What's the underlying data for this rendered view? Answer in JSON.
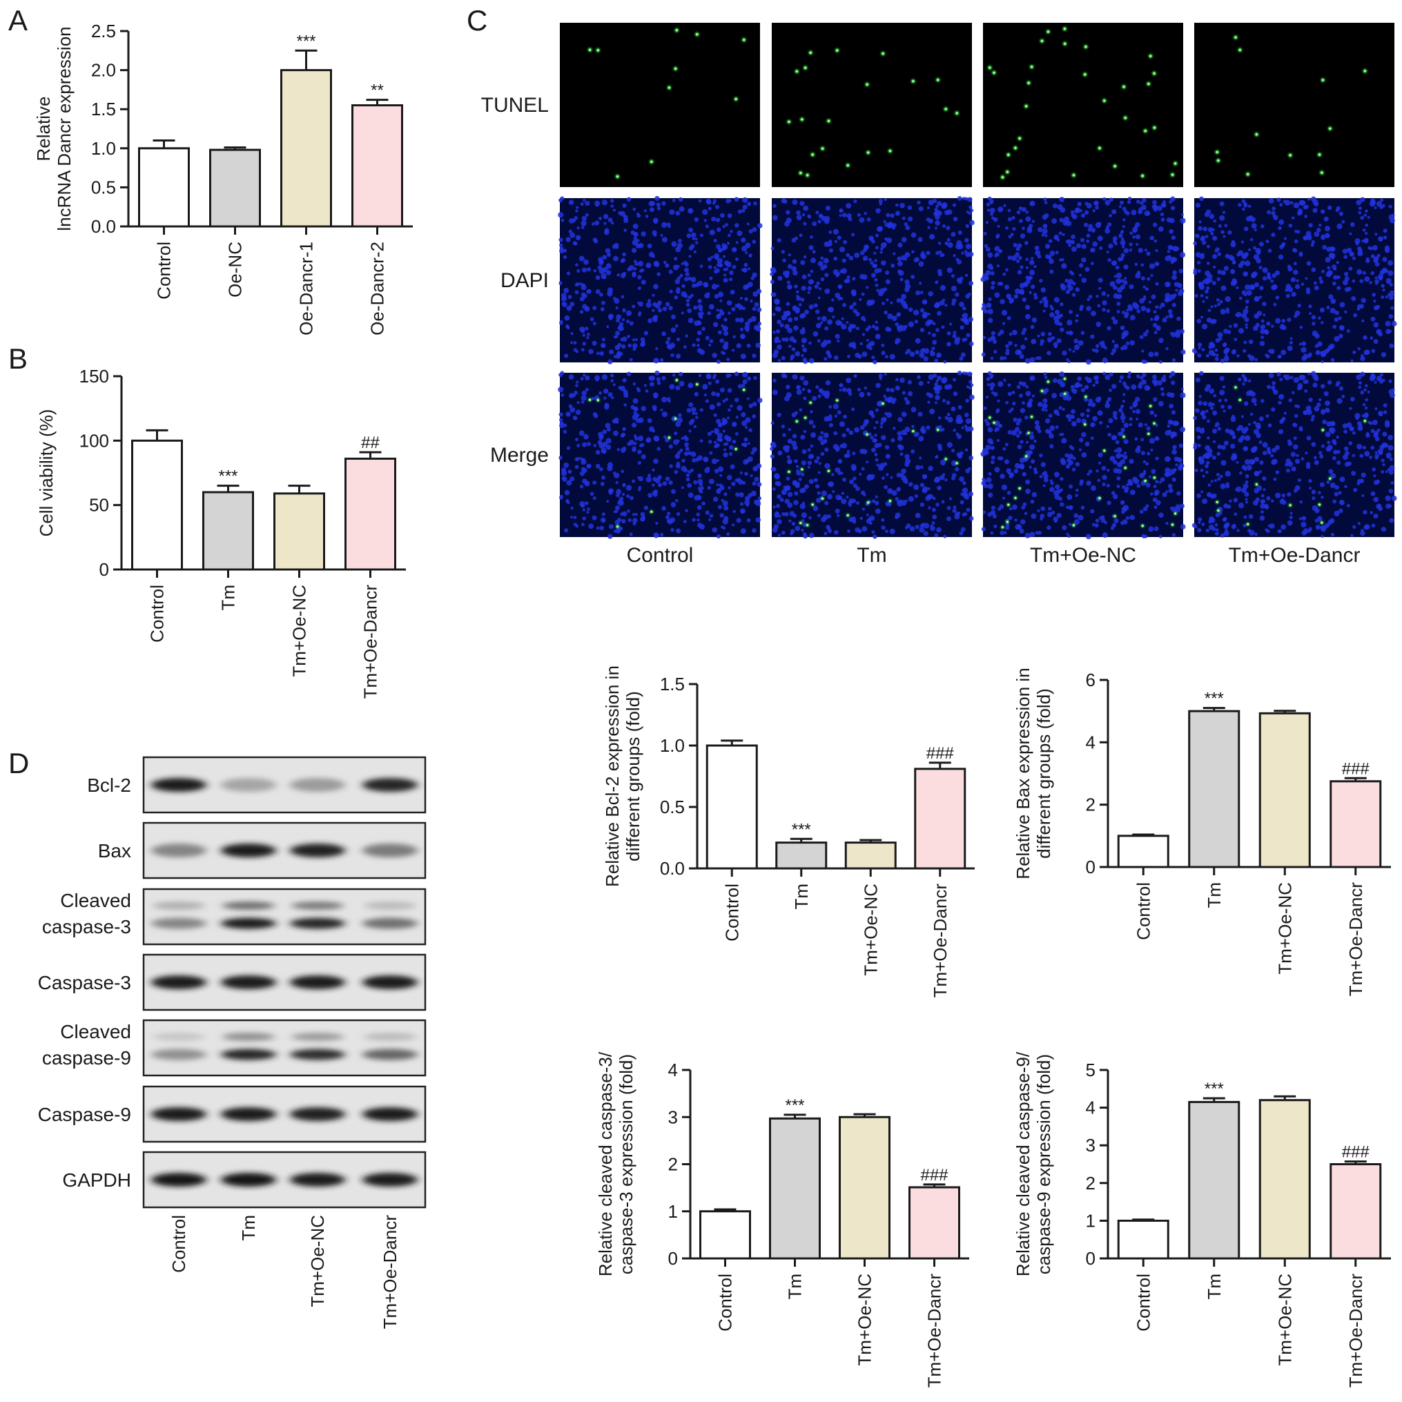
{
  "colors": {
    "control": "#ffffff",
    "tm": "#d4d4d4",
    "oe_nc": "#ede6c9",
    "oe_dancr": "#fbdcdf",
    "axis": "#1a1a1a",
    "micro_bg": "#000000",
    "tunel_dot": "#39e639",
    "dapi_bg": "#010a3a",
    "dapi_nucleus": "#2233dd"
  },
  "icons": [
    "western-blot-band"
  ],
  "chart_data": [
    {
      "id": "A",
      "panel_label": "A",
      "type": "bar",
      "categories": [
        "Control",
        "Oe-NC",
        "Oe-Dancr-1",
        "Oe-Dancr-2"
      ],
      "values": [
        1.0,
        0.98,
        2.0,
        1.55
      ],
      "errors": [
        0.1,
        0.03,
        0.25,
        0.07
      ],
      "annotations": [
        "",
        "",
        "***",
        "**"
      ],
      "ylabel_lines": [
        "Relative",
        "lncRNA Dancr expression"
      ],
      "ylim": [
        0,
        2.5
      ],
      "yticks": [
        0.0,
        0.5,
        1.0,
        1.5,
        2.0,
        2.5
      ],
      "ytick_labels": [
        "0.0",
        "0.5",
        "1.0",
        "1.5",
        "2.0",
        "2.5"
      ]
    },
    {
      "id": "B",
      "panel_label": "B",
      "type": "bar",
      "categories": [
        "Control",
        "Tm",
        "Tm+Oe-NC",
        "Tm+Oe-Dancr"
      ],
      "values": [
        100,
        60,
        59,
        86
      ],
      "errors": [
        8,
        5,
        6,
        5
      ],
      "annotations": [
        "",
        "***",
        "",
        "##"
      ],
      "ylabel_lines": [
        "Cell viability (%)"
      ],
      "ylim": [
        0,
        150
      ],
      "yticks": [
        0,
        50,
        100,
        150
      ],
      "ytick_labels": [
        "0",
        "50",
        "100",
        "150"
      ]
    },
    {
      "id": "Bcl2",
      "panel_label": "",
      "type": "bar",
      "categories": [
        "Control",
        "Tm",
        "Tm+Oe-NC",
        "Tm+Oe-Dancr"
      ],
      "values": [
        1.0,
        0.21,
        0.21,
        0.81
      ],
      "errors": [
        0.04,
        0.03,
        0.02,
        0.05
      ],
      "annotations": [
        "",
        "***",
        "",
        "###"
      ],
      "ylabel_lines": [
        "Relative Bcl-2 expression in",
        "different groups (fold)"
      ],
      "ylim": [
        0,
        1.5
      ],
      "yticks": [
        0.0,
        0.5,
        1.0,
        1.5
      ],
      "ytick_labels": [
        "0.0",
        "0.5",
        "1.0",
        "1.5"
      ]
    },
    {
      "id": "Bax",
      "panel_label": "",
      "type": "bar",
      "categories": [
        "Control",
        "Tm",
        "Tm+Oe-NC",
        "Tm+Oe-Dancr"
      ],
      "values": [
        1.0,
        5.0,
        4.93,
        2.75
      ],
      "errors": [
        0.04,
        0.1,
        0.08,
        0.1
      ],
      "annotations": [
        "",
        "***",
        "",
        "###"
      ],
      "ylabel_lines": [
        "Relative Bax expression in",
        "different groups (fold)"
      ],
      "ylim": [
        0,
        6
      ],
      "yticks": [
        0,
        2,
        4,
        6
      ],
      "ytick_labels": [
        "0",
        "2",
        "4",
        "6"
      ]
    },
    {
      "id": "Casp3",
      "panel_label": "",
      "type": "bar",
      "categories": [
        "Control",
        "Tm",
        "Tm+Oe-NC",
        "Tm+Oe-Dancr"
      ],
      "values": [
        1.0,
        2.97,
        3.0,
        1.51
      ],
      "errors": [
        0.04,
        0.08,
        0.06,
        0.06
      ],
      "annotations": [
        "",
        "***",
        "",
        "###"
      ],
      "ylabel_lines": [
        "Relative cleaved caspase-3/",
        "caspase-3 expression (fold)"
      ],
      "ylim": [
        0,
        4
      ],
      "yticks": [
        0,
        1,
        2,
        3,
        4
      ],
      "ytick_labels": [
        "0",
        "1",
        "2",
        "3",
        "4"
      ]
    },
    {
      "id": "Casp9",
      "panel_label": "",
      "type": "bar",
      "categories": [
        "Control",
        "Tm",
        "Tm+Oe-NC",
        "Tm+Oe-Dancr"
      ],
      "values": [
        1.0,
        4.15,
        4.2,
        2.5
      ],
      "errors": [
        0.03,
        0.1,
        0.1,
        0.07
      ],
      "annotations": [
        "",
        "***",
        "",
        "###"
      ],
      "ylabel_lines": [
        "Relative cleaved caspase-9/",
        "caspase-9 expression (fold)"
      ],
      "ylim": [
        0,
        5
      ],
      "yticks": [
        0,
        1,
        2,
        3,
        4,
        5
      ],
      "ytick_labels": [
        "0",
        "1",
        "2",
        "3",
        "4",
        "5"
      ]
    }
  ],
  "panel_c": {
    "label": "C",
    "row_labels": [
      "TUNEL",
      "DAPI",
      "Merge"
    ],
    "column_labels": [
      "Control",
      "Tm",
      "Tm+Oe-NC",
      "Tm+Oe-Dancr"
    ],
    "tunel_positive_relative": [
      1,
      2,
      3,
      1.2
    ]
  },
  "panel_d": {
    "label": "D",
    "proteins": [
      "Bcl-2",
      "Bax",
      "Cleaved caspase-3",
      "Caspase-3",
      "Cleaved caspase-9",
      "Caspase-9",
      "GAPDH"
    ],
    "protein_label_lines": [
      [
        "Bcl-2"
      ],
      [
        "Bax"
      ],
      [
        "Cleaved",
        "caspase-3"
      ],
      [
        "Caspase-3"
      ],
      [
        "Cleaved",
        "caspase-9"
      ],
      [
        "Caspase-9"
      ],
      [
        "GAPDH"
      ]
    ],
    "lanes": [
      "Control",
      "Tm",
      "Tm+Oe-NC",
      "Tm+Oe-Dancr"
    ],
    "band_intensity": [
      [
        0.95,
        0.3,
        0.35,
        0.9
      ],
      [
        0.45,
        0.95,
        0.92,
        0.5
      ],
      [
        0.45,
        0.95,
        0.9,
        0.55
      ],
      [
        0.95,
        0.95,
        0.93,
        0.93
      ],
      [
        0.4,
        0.9,
        0.85,
        0.6
      ],
      [
        0.95,
        0.93,
        0.92,
        0.93
      ],
      [
        0.97,
        0.97,
        0.95,
        0.95
      ]
    ],
    "secondary_band_intensity": [
      null,
      null,
      [
        0.25,
        0.55,
        0.5,
        0.2
      ],
      null,
      [
        0.15,
        0.4,
        0.35,
        0.2
      ],
      null,
      null
    ]
  }
}
